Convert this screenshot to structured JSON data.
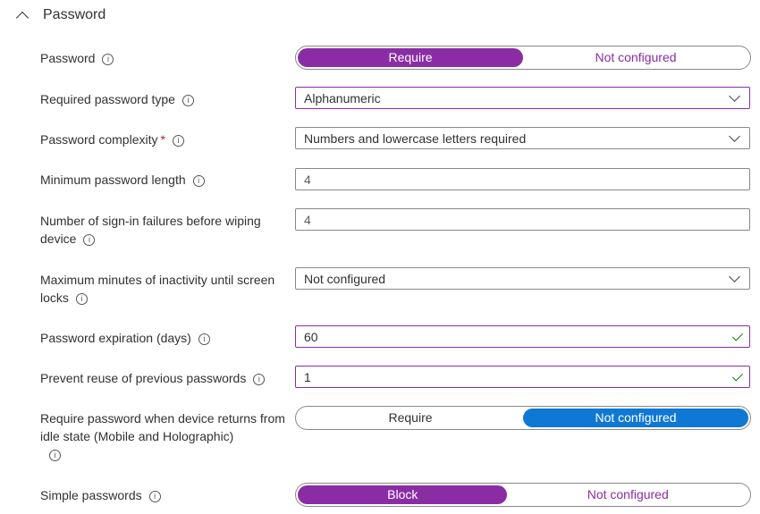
{
  "section": {
    "title": "Password",
    "icon": "chevron-up-icon"
  },
  "colors": {
    "accent": "#8a2da5",
    "blue": "#0f78d4",
    "check": "#107c10"
  },
  "fields": {
    "password": {
      "label": "Password",
      "options": [
        "Require",
        "Not configured"
      ],
      "selected": "Require"
    },
    "type": {
      "label": "Required password type",
      "value": "Alphanumeric"
    },
    "complexity": {
      "label": "Password complexity",
      "required": "*",
      "value": "Numbers and lowercase letters required"
    },
    "minlen": {
      "label": "Minimum password length",
      "value": "4"
    },
    "failures": {
      "label": "Number of sign-in failures before wiping device",
      "value": "4"
    },
    "inactivity": {
      "label": "Maximum minutes of inactivity until screen locks",
      "value": "Not configured"
    },
    "expiration": {
      "label": "Password expiration (days)",
      "value": "60"
    },
    "reuse": {
      "label": "Prevent reuse of previous passwords",
      "value": "1"
    },
    "idle": {
      "label": "Require password when device returns from idle state (Mobile and Holographic)",
      "options": [
        "Require",
        "Not configured"
      ],
      "selected": "Not configured"
    },
    "simple": {
      "label": "Simple passwords",
      "options": [
        "Block",
        "Not configured"
      ],
      "selected": "Block"
    }
  },
  "info_glyph": "i"
}
